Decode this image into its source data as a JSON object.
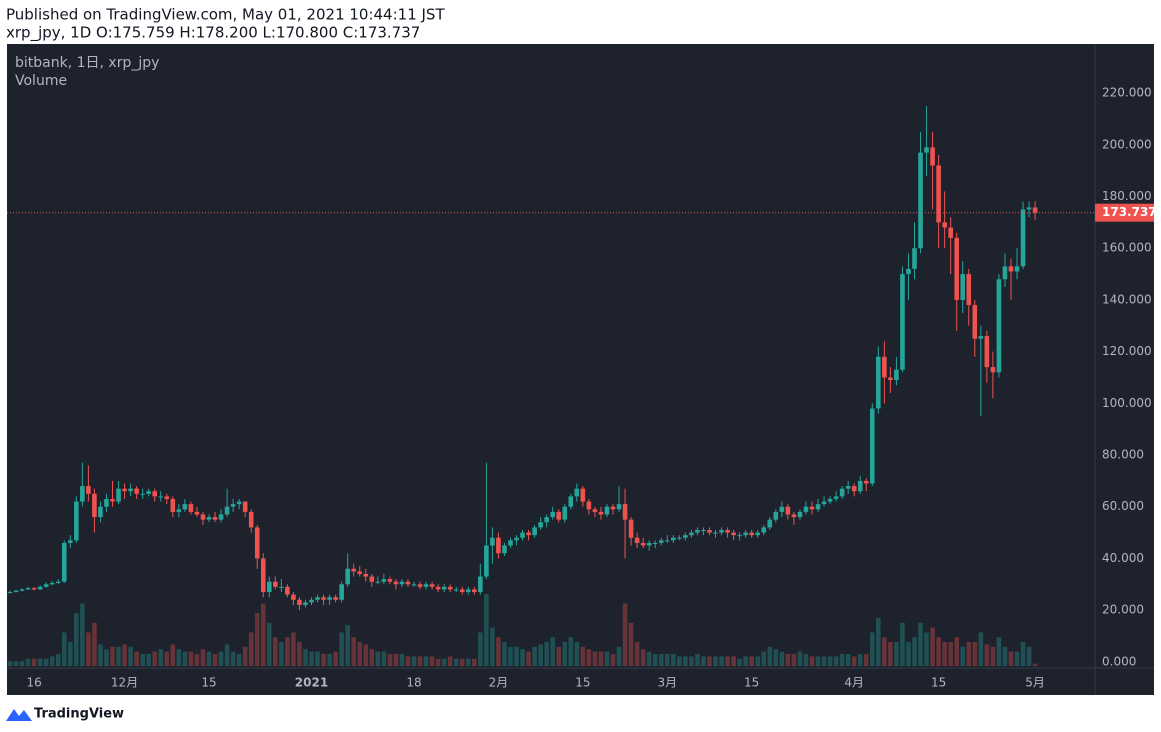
{
  "header": {
    "published": "Published on TradingView.com, May 01, 2021 10:44:11 JST",
    "quote": "xrp_jpy, 1D O:175.759 H:178.200 L:170.800 C:173.737"
  },
  "footer": {
    "brand": "TradingView"
  },
  "chart_data": {
    "type": "candlestick",
    "title": "bitbank, 1日, xrp_jpy",
    "volume_title": "Volume",
    "up_color": "#26a69a",
    "down_color": "#ef5350",
    "ylim": [
      -2,
      239
    ],
    "yticks": [
      {
        "value": 0,
        "label": "0.000"
      },
      {
        "value": 20,
        "label": "20.000"
      },
      {
        "value": 40,
        "label": "40.000"
      },
      {
        "value": 60,
        "label": "60.000"
      },
      {
        "value": 80,
        "label": "80.000"
      },
      {
        "value": 100,
        "label": "100.000"
      },
      {
        "value": 120,
        "label": "120.000"
      },
      {
        "value": 140,
        "label": "140.000"
      },
      {
        "value": 160,
        "label": "160.000"
      },
      {
        "value": 180,
        "label": "180.000"
      },
      {
        "value": 200,
        "label": "200.000"
      },
      {
        "value": 220,
        "label": "220.000"
      }
    ],
    "categories": [
      null,
      null,
      null,
      null,
      "16",
      null,
      null,
      null,
      null,
      null,
      null,
      null,
      null,
      null,
      null,
      null,
      null,
      null,
      null,
      "12月",
      null,
      null,
      null,
      null,
      null,
      null,
      null,
      null,
      null,
      null,
      null,
      null,
      null,
      "15",
      null,
      null,
      null,
      null,
      null,
      null,
      null,
      null,
      null,
      null,
      null,
      null,
      null,
      null,
      null,
      null,
      "2021",
      null,
      null,
      null,
      null,
      null,
      null,
      null,
      null,
      null,
      null,
      null,
      null,
      null,
      null,
      null,
      null,
      "18",
      null,
      null,
      null,
      null,
      null,
      null,
      null,
      null,
      null,
      null,
      null,
      null,
      null,
      "2月",
      null,
      null,
      null,
      null,
      null,
      null,
      null,
      null,
      null,
      null,
      null,
      null,
      null,
      "15",
      null,
      null,
      null,
      null,
      null,
      null,
      null,
      null,
      null,
      null,
      null,
      null,
      null,
      "3月",
      null,
      null,
      null,
      null,
      null,
      null,
      null,
      null,
      null,
      null,
      null,
      null,
      null,
      "15",
      null,
      null,
      null,
      null,
      null,
      null,
      null,
      null,
      null,
      null,
      null,
      null,
      null,
      null,
      null,
      null,
      "4月",
      null,
      null,
      null,
      null,
      null,
      null,
      null,
      null,
      null,
      null,
      null,
      null,
      null,
      "15",
      null,
      null,
      null,
      null,
      null,
      null,
      null,
      null,
      null,
      null,
      null,
      null,
      null,
      null,
      null,
      "5月"
    ],
    "ohlc": [
      [
        26.8,
        27.6,
        26.5,
        27
      ],
      [
        27,
        27.9,
        26.8,
        27.5
      ],
      [
        27.5,
        28.4,
        27.2,
        28
      ],
      [
        28,
        29,
        27.8,
        28.5
      ],
      [
        28.5,
        29,
        27.6,
        28
      ],
      [
        28,
        29.6,
        27.8,
        29
      ],
      [
        29,
        30.8,
        28.7,
        30
      ],
      [
        30,
        31.2,
        29.6,
        30.5
      ],
      [
        30.5,
        32,
        30,
        31
      ],
      [
        31,
        47,
        30.5,
        46
      ],
      [
        46,
        49,
        44,
        47
      ],
      [
        47,
        64,
        46,
        62
      ],
      [
        62,
        77,
        60,
        68
      ],
      [
        68,
        76,
        62,
        65
      ],
      [
        65,
        67,
        50,
        56
      ],
      [
        56,
        62,
        54,
        60
      ],
      [
        60,
        65,
        58,
        63
      ],
      [
        63,
        70,
        60,
        62
      ],
      [
        62,
        70,
        61,
        67
      ],
      [
        67,
        69,
        63,
        66
      ],
      [
        66,
        69,
        64,
        67
      ],
      [
        67,
        68,
        63,
        65
      ],
      [
        65,
        67,
        63,
        65
      ],
      [
        65,
        67,
        64,
        66
      ],
      [
        66,
        67,
        62,
        64
      ],
      [
        64,
        66,
        62,
        64
      ],
      [
        64,
        65,
        61,
        63
      ],
      [
        63,
        64,
        56,
        58
      ],
      [
        58,
        61,
        56,
        59
      ],
      [
        59,
        63,
        58,
        61
      ],
      [
        61,
        62,
        57,
        58
      ],
      [
        58,
        60,
        56,
        57
      ],
      [
        57,
        58,
        53,
        55
      ],
      [
        55,
        57,
        54,
        56
      ],
      [
        56,
        58,
        54,
        55
      ],
      [
        55,
        59,
        54,
        57
      ],
      [
        57,
        67,
        56,
        60
      ],
      [
        60,
        63,
        58,
        61
      ],
      [
        61,
        63,
        59,
        62
      ],
      [
        62,
        62,
        56,
        58
      ],
      [
        58,
        59,
        50,
        52
      ],
      [
        52,
        53,
        36,
        40
      ],
      [
        40,
        42,
        25,
        27
      ],
      [
        27,
        33,
        25,
        31
      ],
      [
        31,
        33,
        28,
        29
      ],
      [
        29,
        32,
        27,
        29
      ],
      [
        29,
        30,
        25,
        26
      ],
      [
        26,
        27,
        22,
        24
      ],
      [
        24,
        25,
        20,
        22
      ],
      [
        22,
        24,
        21,
        23
      ],
      [
        23,
        25,
        22,
        24
      ],
      [
        24,
        26,
        23,
        25
      ],
      [
        25,
        26,
        22,
        24
      ],
      [
        24,
        26,
        22,
        25
      ],
      [
        25,
        26,
        23,
        24
      ],
      [
        24,
        31,
        23,
        30
      ],
      [
        30,
        42,
        29,
        36
      ],
      [
        36,
        38,
        33,
        35
      ],
      [
        35,
        37,
        33,
        34
      ],
      [
        34,
        36,
        31,
        33
      ],
      [
        33,
        34,
        29,
        31
      ],
      [
        31,
        33,
        30,
        31
      ],
      [
        31,
        34,
        30,
        32
      ],
      [
        32,
        33,
        30,
        31
      ],
      [
        31,
        32,
        28,
        30
      ],
      [
        30,
        32,
        29,
        31
      ],
      [
        31,
        32,
        29,
        30
      ],
      [
        30,
        31,
        29,
        30
      ],
      [
        30,
        31,
        28,
        29
      ],
      [
        29,
        31,
        28,
        30
      ],
      [
        30,
        31,
        28,
        29
      ],
      [
        29,
        30,
        27,
        28
      ],
      [
        28,
        30,
        27,
        29
      ],
      [
        29,
        30,
        27,
        28
      ],
      [
        28,
        29,
        27,
        28
      ],
      [
        28,
        29,
        26,
        27
      ],
      [
        27,
        29,
        26,
        28
      ],
      [
        28,
        29,
        26,
        27
      ],
      [
        27,
        38,
        26,
        33
      ],
      [
        33,
        77,
        32,
        45
      ],
      [
        45,
        52,
        38,
        48
      ],
      [
        48,
        50,
        40,
        42
      ],
      [
        42,
        46,
        41,
        45
      ],
      [
        45,
        48,
        44,
        47
      ],
      [
        47,
        49,
        45,
        48
      ],
      [
        48,
        51,
        47,
        50
      ],
      [
        50,
        51,
        47,
        49
      ],
      [
        49,
        53,
        48,
        52
      ],
      [
        52,
        56,
        51,
        54
      ],
      [
        54,
        57,
        52,
        56
      ],
      [
        56,
        60,
        55,
        58
      ],
      [
        58,
        59,
        54,
        55
      ],
      [
        55,
        61,
        54,
        60
      ],
      [
        60,
        65,
        59,
        64
      ],
      [
        64,
        69,
        62,
        67
      ],
      [
        67,
        68,
        60,
        62
      ],
      [
        62,
        63,
        57,
        59
      ],
      [
        59,
        60,
        56,
        58
      ],
      [
        58,
        60,
        55,
        57
      ],
      [
        57,
        61,
        56,
        60
      ],
      [
        60,
        61,
        57,
        59
      ],
      [
        59,
        68,
        58,
        61
      ],
      [
        61,
        67,
        40,
        55
      ],
      [
        55,
        56,
        45,
        48
      ],
      [
        48,
        50,
        44,
        46
      ],
      [
        46,
        48,
        44,
        45
      ],
      [
        45,
        47,
        43,
        46
      ],
      [
        46,
        47,
        44,
        46
      ],
      [
        46,
        48,
        45,
        47
      ],
      [
        47,
        49,
        46,
        47
      ],
      [
        47,
        49,
        46,
        48
      ],
      [
        48,
        49,
        47,
        48
      ],
      [
        48,
        50,
        47,
        49
      ],
      [
        49,
        51,
        48,
        50
      ],
      [
        50,
        52,
        49,
        51
      ],
      [
        51,
        52,
        49,
        51
      ],
      [
        51,
        52,
        49,
        50
      ],
      [
        50,
        51,
        48,
        50
      ],
      [
        50,
        52,
        49,
        51
      ],
      [
        51,
        52,
        48,
        50
      ],
      [
        50,
        51,
        47,
        49
      ],
      [
        49,
        50,
        47,
        49
      ],
      [
        49,
        51,
        48,
        50
      ],
      [
        50,
        51,
        48,
        49
      ],
      [
        49,
        51,
        48,
        50
      ],
      [
        50,
        53,
        49,
        52
      ],
      [
        52,
        56,
        51,
        55
      ],
      [
        55,
        59,
        54,
        58
      ],
      [
        58,
        62,
        56,
        60
      ],
      [
        60,
        61,
        55,
        57
      ],
      [
        57,
        58,
        53,
        56
      ],
      [
        56,
        59,
        55,
        58
      ],
      [
        58,
        62,
        57,
        60
      ],
      [
        60,
        62,
        57,
        59
      ],
      [
        59,
        63,
        58,
        61
      ],
      [
        61,
        64,
        60,
        62
      ],
      [
        62,
        64,
        61,
        63
      ],
      [
        63,
        66,
        62,
        64
      ],
      [
        64,
        68,
        63,
        67
      ],
      [
        67,
        70,
        65,
        68
      ],
      [
        68,
        69,
        64,
        66
      ],
      [
        66,
        72,
        65,
        70
      ],
      [
        70,
        71,
        66,
        69
      ],
      [
        69,
        100,
        68,
        98
      ],
      [
        98,
        122,
        96,
        118
      ],
      [
        118,
        124,
        100,
        110
      ],
      [
        110,
        114,
        104,
        109
      ],
      [
        109,
        118,
        107,
        113
      ],
      [
        113,
        153,
        112,
        150
      ],
      [
        150,
        158,
        140,
        152
      ],
      [
        152,
        170,
        148,
        160
      ],
      [
        160,
        205,
        158,
        197
      ],
      [
        197,
        215,
        188,
        199
      ],
      [
        199,
        205,
        175,
        192
      ],
      [
        192,
        196,
        160,
        170
      ],
      [
        170,
        182,
        160,
        168
      ],
      [
        168,
        172,
        150,
        164
      ],
      [
        164,
        166,
        128,
        140
      ],
      [
        140,
        155,
        135,
        150
      ],
      [
        150,
        152,
        130,
        138
      ],
      [
        138,
        140,
        118,
        125
      ],
      [
        125,
        130,
        95,
        126
      ],
      [
        126,
        128,
        108,
        114
      ],
      [
        114,
        120,
        102,
        112
      ],
      [
        112,
        150,
        110,
        148
      ],
      [
        148,
        158,
        145,
        153
      ],
      [
        153,
        156,
        140,
        151
      ],
      [
        151,
        160,
        148,
        153
      ],
      [
        153,
        178,
        152,
        175
      ],
      [
        175,
        178,
        172,
        175.759
      ],
      [
        175.759,
        178.2,
        170.8,
        173.737
      ]
    ],
    "volume": [
      2,
      2,
      2,
      3,
      3,
      3,
      3,
      4,
      5,
      14,
      10,
      22,
      26,
      14,
      18,
      9,
      7,
      8,
      8,
      9,
      8,
      6,
      5,
      5,
      6,
      7,
      6,
      9,
      7,
      6,
      6,
      5,
      7,
      6,
      5,
      6,
      9,
      6,
      5,
      8,
      14,
      22,
      26,
      18,
      12,
      10,
      12,
      14,
      10,
      7,
      6,
      6,
      5,
      5,
      6,
      14,
      17,
      12,
      10,
      9,
      7,
      6,
      6,
      5,
      5,
      5,
      4,
      4,
      4,
      4,
      4,
      3,
      3,
      4,
      3,
      3,
      3,
      3,
      14,
      30,
      16,
      12,
      10,
      8,
      8,
      7,
      6,
      8,
      9,
      10,
      12,
      8,
      10,
      12,
      10,
      8,
      7,
      6,
      6,
      6,
      5,
      8,
      26,
      18,
      10,
      7,
      6,
      5,
      5,
      5,
      5,
      4,
      4,
      4,
      5,
      4,
      4,
      4,
      4,
      4,
      4,
      3,
      4,
      4,
      4,
      6,
      8,
      7,
      6,
      5,
      5,
      6,
      5,
      4,
      4,
      4,
      4,
      4,
      5,
      5,
      4,
      5,
      5,
      14,
      20,
      12,
      10,
      10,
      18,
      10,
      12,
      18,
      14,
      16,
      12,
      10,
      10,
      12,
      8,
      10,
      10,
      14,
      9,
      8,
      12,
      8,
      6,
      6,
      10,
      8,
      1
    ]
  }
}
